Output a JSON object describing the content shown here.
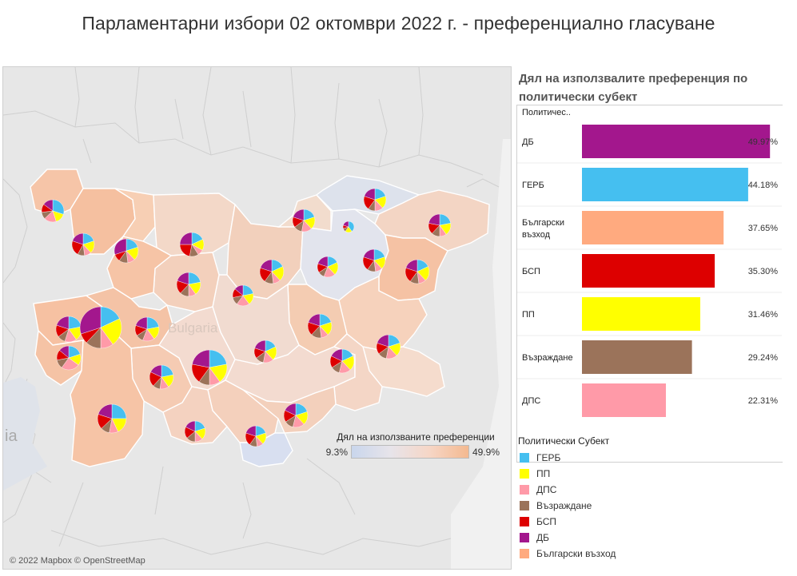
{
  "title": "Парламентарни избори 02 октомври 2022 г. - преференциално гласуване",
  "map": {
    "country_label": "Bulgaria",
    "edge_label": "ia",
    "attribution": "© 2022 Mapbox © OpenStreetMap",
    "color_legend": {
      "title": "Дял на използваните преференции",
      "min": "9.3%",
      "max": "49.9%"
    }
  },
  "chart_data": {
    "type": "bar",
    "title": "Дял на използвалите преференция по политически субект",
    "column_header": "Политичес..",
    "categories": [
      "ДБ",
      "ГЕРБ",
      "Български възход",
      "БСП",
      "ПП",
      "Възраждане",
      "ДПС"
    ],
    "values": [
      49.97,
      44.18,
      37.65,
      35.3,
      31.46,
      29.24,
      22.31
    ],
    "value_labels": [
      "49.97%",
      "44.18%",
      "37.65%",
      "35.30%",
      "31.46%",
      "29.24%",
      "22.31%"
    ],
    "colors": [
      "#a3178d",
      "#45bff0",
      "#ffaa7f",
      "#dd0000",
      "#ffff00",
      "#9b735a",
      "#ff9aa8"
    ],
    "xlim": [
      0,
      51
    ]
  },
  "legend": {
    "title": "Политически Субект",
    "items": [
      {
        "label": "ГЕРБ",
        "color": "#45bff0"
      },
      {
        "label": "ПП",
        "color": "#ffff00"
      },
      {
        "label": "ДПС",
        "color": "#ff9aa8"
      },
      {
        "label": "Възраждане",
        "color": "#9b735a"
      },
      {
        "label": "БСП",
        "color": "#dd0000"
      },
      {
        "label": "ДБ",
        "color": "#a3178d"
      },
      {
        "label": "Български възход",
        "color": "#ffaa7f"
      }
    ]
  }
}
